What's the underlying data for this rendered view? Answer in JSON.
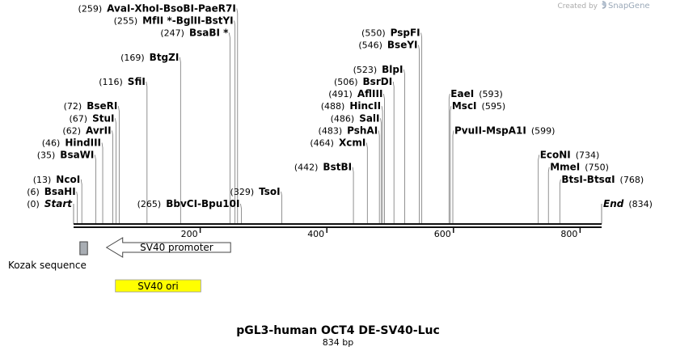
{
  "credit": {
    "prefix": "Created by",
    "brand": "SnapGene",
    "icon": "snapgene-logo-icon"
  },
  "map": {
    "title": "pGL3-human OCT4 DE-SV40-Luc",
    "length_label": "834 bp",
    "length": 834,
    "ticks": [
      {
        "value": 200,
        "label": "200"
      },
      {
        "value": 400,
        "label": "400"
      },
      {
        "value": 600,
        "label": "600"
      },
      {
        "value": 800,
        "label": "800"
      }
    ],
    "sites": [
      {
        "row": 0,
        "pos": 0,
        "pos_label": "(0)",
        "parts": [
          {
            "name": "Start",
            "italic": true,
            "site": 0
          }
        ]
      },
      {
        "row": 1,
        "pos": 6,
        "pos_label": "(6)",
        "parts": [
          {
            "name": "BsaHI",
            "site": 6
          }
        ]
      },
      {
        "row": 2,
        "pos": 13,
        "pos_label": "(13)",
        "parts": [
          {
            "name": "NcoI",
            "site": 13
          }
        ]
      },
      {
        "row": 4,
        "pos": 35,
        "pos_label": "(35)",
        "parts": [
          {
            "name": "BsaWI",
            "site": 35
          }
        ]
      },
      {
        "row": 5,
        "pos": 46,
        "pos_label": "(46)",
        "parts": [
          {
            "name": "HindIII",
            "site": 46
          }
        ]
      },
      {
        "row": 6,
        "pos": 62,
        "pos_label": "(62)",
        "parts": [
          {
            "name": "AvrII",
            "site": 62
          }
        ]
      },
      {
        "row": 7,
        "pos": 67,
        "pos_label": "(67)",
        "parts": [
          {
            "name": "StuI",
            "site": 67
          }
        ]
      },
      {
        "row": 8,
        "pos": 72,
        "pos_label": "(72)",
        "parts": [
          {
            "name": "BseRI",
            "site": 72
          }
        ]
      },
      {
        "row": 10,
        "pos": 116,
        "pos_label": "(116)",
        "parts": [
          {
            "name": "SfiI",
            "site": 116
          }
        ]
      },
      {
        "row": 12,
        "pos": 169,
        "pos_label": "(169)",
        "parts": [
          {
            "name": "BtgZI",
            "site": 169
          }
        ]
      },
      {
        "row": 0,
        "pos": 265,
        "pos_label": "(265)",
        "parts": [
          {
            "name": "BbvCI",
            "site": 265
          },
          {
            "name": "Bpu10I",
            "site": 265
          }
        ]
      },
      {
        "row": 14,
        "pos": 247,
        "pos_label": "(247)",
        "parts": [
          {
            "name": "BsaBI *",
            "site": 247
          }
        ]
      },
      {
        "row": 15,
        "pos": 255,
        "pos_label": "(255)",
        "parts": [
          {
            "name": "MfII *",
            "site": 255
          },
          {
            "name": "BglII",
            "site": 255
          },
          {
            "name": "BstYI",
            "site": 255
          }
        ]
      },
      {
        "row": 16,
        "pos": 259,
        "pos_label": "(259)",
        "parts": [
          {
            "name": "AvaI",
            "site": 259
          },
          {
            "name": "XhoI",
            "site": 259
          },
          {
            "name": "BsoBI",
            "site": 259
          },
          {
            "name": "PaeR7I",
            "site": 259
          }
        ]
      },
      {
        "row": 1,
        "pos": 329,
        "pos_label": "(329)",
        "parts": [
          {
            "name": "TsoI",
            "site": 329
          }
        ]
      },
      {
        "row": 3,
        "pos": 442,
        "pos_label": "(442)",
        "parts": [
          {
            "name": "BstBI",
            "site": 442
          }
        ]
      },
      {
        "row": 5,
        "pos": 464,
        "pos_label": "(464)",
        "parts": [
          {
            "name": "XcmI",
            "site": 464
          }
        ]
      },
      {
        "row": 6,
        "pos": 483,
        "pos_label": "(483)",
        "parts": [
          {
            "name": "PshAI",
            "site": 483
          }
        ]
      },
      {
        "row": 7,
        "pos": 486,
        "pos_label": "(486)",
        "parts": [
          {
            "name": "SalI",
            "site": 486
          }
        ]
      },
      {
        "row": 8,
        "pos": 488,
        "pos_label": "(488)",
        "parts": [
          {
            "name": "HincII",
            "site": 488
          }
        ]
      },
      {
        "row": 9,
        "pos": 491,
        "pos_label": "(491)",
        "parts": [
          {
            "name": "AflIII",
            "site": 491
          }
        ]
      },
      {
        "row": 10,
        "pos": 506,
        "pos_label": "(506)",
        "parts": [
          {
            "name": "BsrDI",
            "site": 506
          }
        ]
      },
      {
        "row": 11,
        "pos": 523,
        "pos_label": "(523)",
        "parts": [
          {
            "name": "BlpI",
            "site": 523
          }
        ]
      },
      {
        "row": 13,
        "pos": 546,
        "pos_label": "(546)",
        "parts": [
          {
            "name": "BseYI",
            "site": 546
          }
        ]
      },
      {
        "row": 14,
        "pos": 550,
        "pos_label": "(550)",
        "parts": [
          {
            "name": "PspFI",
            "site": 550
          }
        ]
      },
      {
        "row": 9,
        "pos": 593,
        "pos_label": "(593)",
        "label_left": true,
        "parts": [
          {
            "name": "EaeI",
            "site": 593
          }
        ]
      },
      {
        "row": 8,
        "pos": 595,
        "pos_label": "(595)",
        "label_left": true,
        "parts": [
          {
            "name": "MscI",
            "site": 595
          }
        ]
      },
      {
        "row": 6,
        "pos": 599,
        "pos_label": "(599)",
        "label_left": true,
        "parts": [
          {
            "name": "PvuII",
            "site": 599
          },
          {
            "name": "MspA1I",
            "site": 599
          }
        ]
      },
      {
        "row": 4,
        "pos": 734,
        "pos_label": "(734)",
        "label_left": true,
        "parts": [
          {
            "name": "EcoNI",
            "site": 734
          }
        ]
      },
      {
        "row": 3,
        "pos": 750,
        "pos_label": "(750)",
        "label_left": true,
        "parts": [
          {
            "name": "MmeI",
            "site": 750
          }
        ]
      },
      {
        "row": 2,
        "pos": 768,
        "pos_label": "(768)",
        "label_left": true,
        "parts": [
          {
            "name": "BtsI",
            "site": 768
          },
          {
            "name": "BtsαI",
            "site": 768
          }
        ]
      },
      {
        "row": 0,
        "pos": 834,
        "pos_label": "(834)",
        "label_left": true,
        "parts": [
          {
            "name": "End",
            "italic": true,
            "site": 834
          }
        ]
      }
    ],
    "features": [
      {
        "name": "Kozak sequence",
        "kind": "box",
        "start": 10,
        "end": 22,
        "fill": "#a8adb3",
        "lane": 0,
        "label_below": true
      },
      {
        "name": "SV40 promoter",
        "kind": "arrow-left",
        "start": 52,
        "end": 248,
        "fill": "#ffffff",
        "lane": 0
      },
      {
        "name": "SV40 ori",
        "kind": "box",
        "start": 66,
        "end": 201,
        "fill": "#ffff00",
        "lane": 1
      }
    ]
  }
}
